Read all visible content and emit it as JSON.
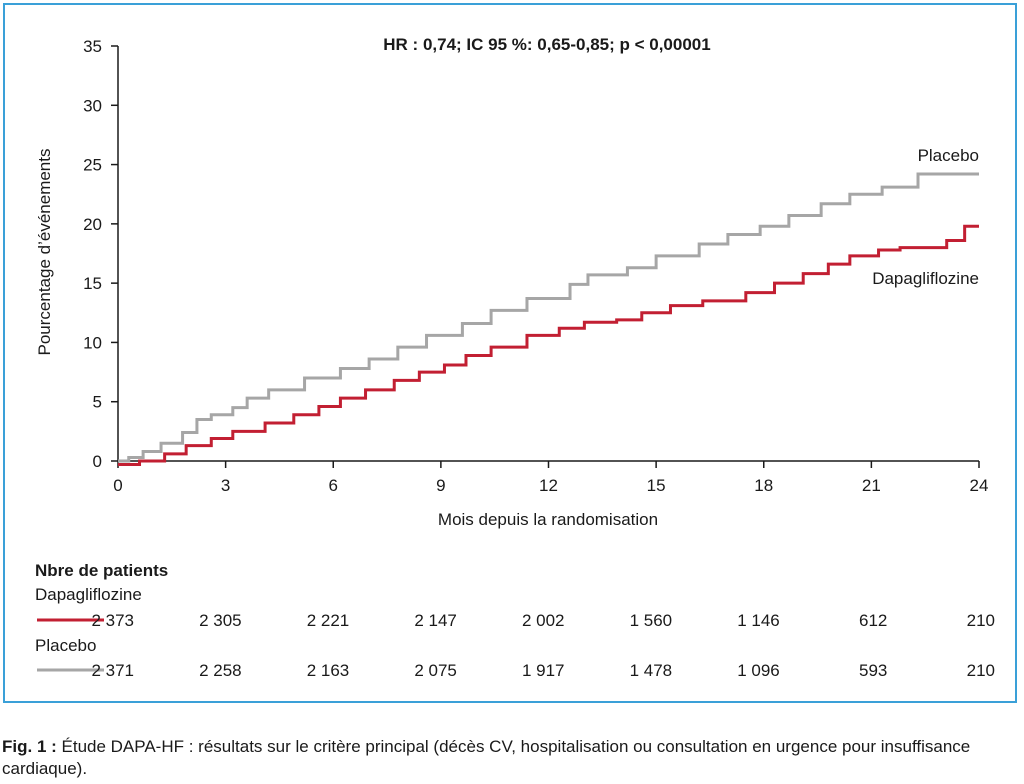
{
  "chart_data": {
    "type": "line",
    "title": "HR : 0,74; IC 95 %: 0,65-0,85; p < 0,00001",
    "xlabel": "Mois depuis la randomisation",
    "ylabel": "Pourcentage d’événements",
    "xlim": [
      0,
      24
    ],
    "ylim": [
      0,
      35
    ],
    "xticks": [
      "0",
      "3",
      "6",
      "9",
      "12",
      "15",
      "18",
      "21",
      "24"
    ],
    "yticks": [
      "0",
      "5",
      "10",
      "15",
      "20",
      "25",
      "30",
      "35"
    ],
    "grid": false,
    "series": [
      {
        "name": "Placebo",
        "color": "#a6a6a6",
        "step": true,
        "x": [
          0,
          0.3,
          0.7,
          1.2,
          1.8,
          2.2,
          2.6,
          3.2,
          3.6,
          4.2,
          5.2,
          6.2,
          7.0,
          7.8,
          8.6,
          9.6,
          10.4,
          11.4,
          12.6,
          13.1,
          14.2,
          15.0,
          16.2,
          17.0,
          17.9,
          18.7,
          19.6,
          20.4,
          21.3,
          22.3,
          23.1,
          24.0
        ],
        "y": [
          0,
          0.3,
          0.8,
          1.5,
          2.4,
          3.5,
          3.9,
          4.5,
          5.3,
          6.0,
          7.0,
          7.8,
          8.6,
          9.6,
          10.6,
          11.6,
          12.7,
          13.7,
          14.9,
          15.7,
          16.3,
          17.3,
          18.3,
          19.1,
          19.8,
          20.7,
          21.7,
          22.5,
          23.1,
          24.2,
          24.2,
          24.2
        ]
      },
      {
        "name": "Dapagliflozine",
        "color": "#c21f32",
        "step": true,
        "x": [
          0,
          0.6,
          1.3,
          1.9,
          2.6,
          3.2,
          4.1,
          4.9,
          5.6,
          6.2,
          6.9,
          7.7,
          8.4,
          9.1,
          9.7,
          10.4,
          11.4,
          12.3,
          13.0,
          13.9,
          14.6,
          15.4,
          16.3,
          17.5,
          18.3,
          19.1,
          19.8,
          20.4,
          21.2,
          21.8,
          22.6,
          23.1,
          23.6,
          24.0
        ],
        "y": [
          -0.3,
          0,
          0.6,
          1.3,
          1.9,
          2.5,
          3.2,
          3.9,
          4.6,
          5.3,
          6.0,
          6.8,
          7.5,
          8.1,
          8.9,
          9.6,
          10.6,
          11.2,
          11.7,
          11.9,
          12.5,
          13.1,
          13.5,
          14.2,
          15.0,
          15.8,
          16.6,
          17.3,
          17.8,
          18.0,
          18.0,
          18.6,
          19.8,
          19.8
        ]
      }
    ],
    "annotations": [
      "Placebo",
      "Dapagliflozine"
    ]
  },
  "risk_table": {
    "title": "Nbre de patients",
    "rows": [
      {
        "name": "Dapagliflozine",
        "color": "#c21f32",
        "values": [
          "2 373",
          "2 305",
          "2 221",
          "2 147",
          "2 002",
          "1 560",
          "1 146",
          "612",
          "210"
        ]
      },
      {
        "name": "Placebo",
        "color": "#a6a6a6",
        "values": [
          "2 371",
          "2 258",
          "2 163",
          "2 075",
          "1 917",
          "1 478",
          "1 096",
          "593",
          "210"
        ]
      }
    ]
  },
  "caption": {
    "label": "Fig. 1 :",
    "text": " Étude DAPA-HF : résultats sur le critère principal (décès CV, hospitalisation ou consultation en urgence pour insuffisance cardiaque)."
  }
}
